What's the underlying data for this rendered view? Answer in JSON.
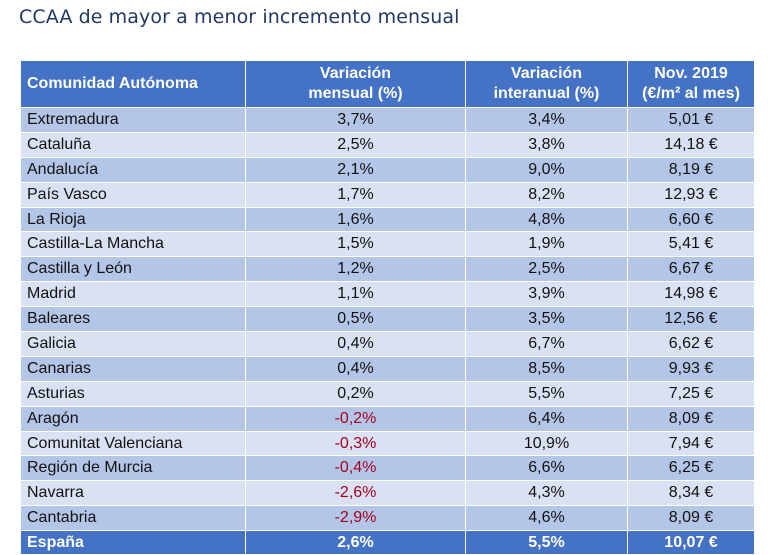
{
  "title": "CCAA de mayor a menor incremento mensual",
  "colors": {
    "header_bg": "#4472c4",
    "row_dark": "#b4c6e7",
    "row_light": "#d9e1f2",
    "negative_text": "#a50021",
    "title_text": "#1f3864"
  },
  "chart_data": {
    "type": "table",
    "columns": [
      [
        "Comunidad Autónoma"
      ],
      [
        "Variación",
        "mensual (%)"
      ],
      [
        "Variación",
        "interanual (%)"
      ],
      [
        "Nov. 2019",
        "(€/m² al mes)"
      ]
    ],
    "rows": [
      [
        "Extremadura",
        "3,7%",
        "3,4%",
        "5,01 €"
      ],
      [
        "Cataluña",
        "2,5%",
        "3,8%",
        "14,18 €"
      ],
      [
        "Andalucía",
        "2,1%",
        "9,0%",
        "8,19 €"
      ],
      [
        "País Vasco",
        "1,7%",
        "8,2%",
        "12,93 €"
      ],
      [
        "La Rioja",
        "1,6%",
        "4,8%",
        "6,60 €"
      ],
      [
        "Castilla-La Mancha",
        "1,5%",
        "1,9%",
        "5,41 €"
      ],
      [
        "Castilla y León",
        "1,2%",
        "2,5%",
        "6,67 €"
      ],
      [
        "Madrid",
        "1,1%",
        "3,9%",
        "14,98 €"
      ],
      [
        "Baleares",
        "0,5%",
        "3,5%",
        "12,56 €"
      ],
      [
        "Galicia",
        "0,4%",
        "6,7%",
        "6,62 €"
      ],
      [
        "Canarias",
        "0,4%",
        "8,5%",
        "9,93 €"
      ],
      [
        "Asturias",
        "0,2%",
        "5,5%",
        "7,25 €"
      ],
      [
        "Aragón",
        "-0,2%",
        "6,4%",
        "8,09 €"
      ],
      [
        "Comunitat Valenciana",
        "-0,3%",
        "10,9%",
        "7,94 €"
      ],
      [
        "Región de Murcia",
        "-0,4%",
        "6,6%",
        "6,25 €"
      ],
      [
        "Navarra",
        "-2,6%",
        "4,3%",
        "8,34 €"
      ],
      [
        "Cantabria",
        "-2,9%",
        "4,6%",
        "8,09 €"
      ]
    ],
    "total": [
      "España",
      "2,6%",
      "5,5%",
      "10,07 €"
    ]
  }
}
